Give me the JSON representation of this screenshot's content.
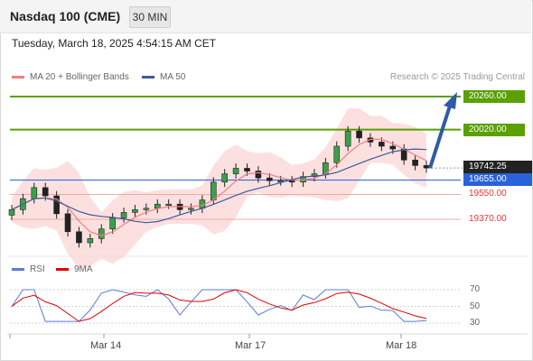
{
  "header": {
    "instrument": "Nasdaq 100 (CME)",
    "timeframe": "30 MIN"
  },
  "timestamp": "Tuesday, March 18, 2025 4:54:15 AM CET",
  "legend": {
    "ma20_label": "MA 20 + Bollinger Bands",
    "ma50_label": "MA 50",
    "credit": "Research © 2025 Trading Central"
  },
  "colors": {
    "resistance": "#5aa000",
    "support": "#2962d9",
    "support_secondary": "#e23a3a",
    "ma20": "#f08080",
    "ma50": "#3d5a99",
    "bollinger_fill": "#fbd5d5",
    "current": "#222222",
    "forecast_arrow": "#2f5aa8"
  },
  "levels": [
    {
      "label": "20260.00",
      "value": 20260,
      "kind": "resistance"
    },
    {
      "label": "20020.00",
      "value": 20020,
      "kind": "resistance"
    },
    {
      "label": "19742.25",
      "value": 19742.25,
      "kind": "current"
    },
    {
      "label": "19655.00",
      "value": 19655,
      "kind": "pivot"
    },
    {
      "label": "19550.00",
      "value": 19550,
      "kind": "support"
    },
    {
      "label": "19370.00",
      "value": 19370,
      "kind": "support"
    }
  ],
  "rsi_legend": {
    "rsi_label": "RSI",
    "ma_label": "9MA"
  },
  "rsi_ticks": [
    "70",
    "50",
    "30"
  ],
  "x_labels": [
    "Mar 14",
    "Mar 17",
    "Mar 18"
  ],
  "chart_data": {
    "type": "candlestick",
    "title": "Nasdaq 100 (CME)",
    "interval": "30 MIN",
    "price_range": [
      19130,
      20330
    ],
    "series": [
      {
        "name": "Price",
        "close": [
          19440,
          19520,
          19600,
          19540,
          19410,
          19280,
          19200,
          19230,
          19300,
          19380,
          19420,
          19440,
          19450,
          19480,
          19480,
          19440,
          19450,
          19510,
          19640,
          19700,
          19740,
          19720,
          19670,
          19650,
          19650,
          19640,
          19680,
          19700,
          19780,
          19900,
          20010,
          19960,
          19930,
          19900,
          19880,
          19800,
          19760,
          19742.25
        ],
        "ohlc_mode": "approximate"
      }
    ],
    "indicators": {
      "ma20_last": 19790,
      "ma50_last": 19700,
      "rsi_range": [
        30,
        70
      ]
    }
  }
}
